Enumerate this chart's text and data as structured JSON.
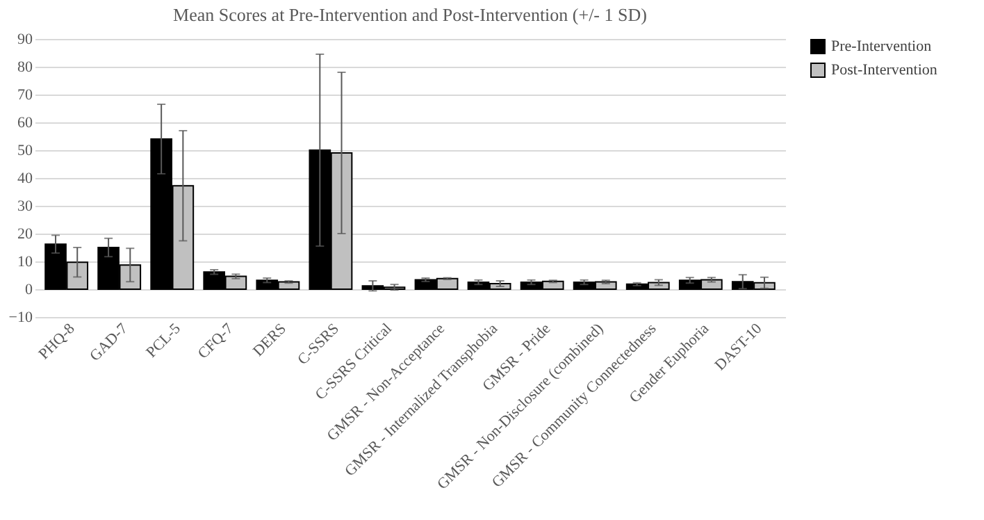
{
  "chart_data": {
    "type": "bar",
    "title": "Mean Scores at Pre-Intervention and Post-Intervention  (+/-  1 SD)",
    "categories": [
      "PHQ-8",
      "GAD-7",
      "PCL-5",
      "CFQ-7",
      "DERS",
      "C-SSRS",
      "C-SSRS Critical",
      "GMSR - Non-Acceptance",
      "GMSR - Internalized Transphobia",
      "GMSR - Pride",
      "GMSR - Non-Disclosure (combined)",
      "GMSR - Community Connectedness",
      "Gender Euphoria",
      "DAST-10"
    ],
    "series": [
      {
        "name": "Pre-Intervention",
        "color": "#000000",
        "values": [
          16.2,
          15,
          54,
          6.2,
          3.2,
          50,
          1.2,
          3.4,
          2.5,
          2.5,
          2.5,
          1.8,
          3.2,
          2.7
        ],
        "errors": [
          3.2,
          3.3,
          12.5,
          0.8,
          0.8,
          34.5,
          1.8,
          0.6,
          0.8,
          0.8,
          0.8,
          0.5,
          1,
          2.5
        ]
      },
      {
        "name": "Post-Intervention",
        "color": "#c0c0c0",
        "values": [
          9.7,
          8.7,
          37.2,
          4.6,
          2.6,
          49,
          0.7,
          3.8,
          2,
          2.8,
          2.6,
          2.4,
          3.4,
          2.3
        ],
        "errors": [
          5.3,
          6,
          19.8,
          0.8,
          0.4,
          29,
          1,
          0.3,
          1,
          0.4,
          0.6,
          1,
          0.8,
          2
        ]
      }
    ],
    "ylim": [
      -10,
      90
    ],
    "yticks": [
      -10,
      0,
      10,
      20,
      30,
      40,
      50,
      60,
      70,
      80,
      90
    ],
    "grid": "y",
    "legend": "right"
  }
}
